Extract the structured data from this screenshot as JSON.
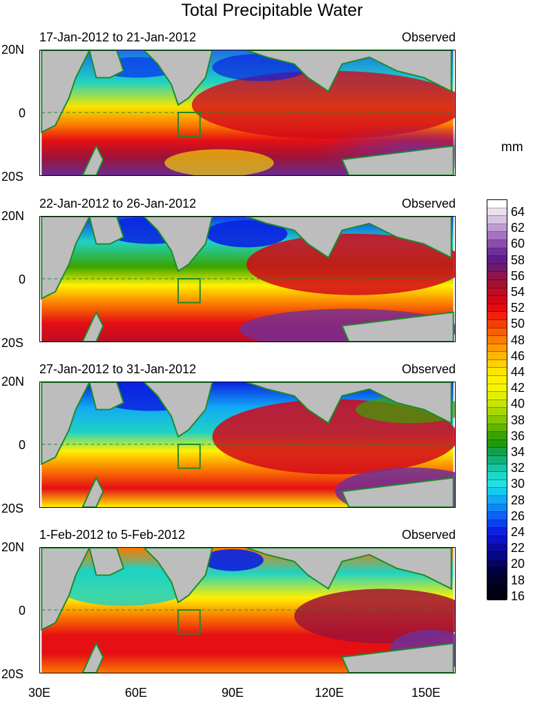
{
  "title": "Total Precipitable Water",
  "units": "mm",
  "panels": [
    {
      "date_range": "17-Jan-2012 to 21-Jan-2012",
      "tag": "Observed"
    },
    {
      "date_range": "22-Jan-2012 to 26-Jan-2012",
      "tag": "Observed"
    },
    {
      "date_range": "27-Jan-2012 to 31-Jan-2012",
      "tag": "Observed"
    },
    {
      "date_range": "1-Feb-2012 to 5-Feb-2012",
      "tag": "Observed"
    }
  ],
  "lat_labels": [
    "20N",
    "0",
    "20S"
  ],
  "lon_labels": [
    "30E",
    "60E",
    "90E",
    "120E",
    "150E"
  ],
  "colorbar": {
    "labels": [
      "64",
      "62",
      "60",
      "58",
      "56",
      "54",
      "52",
      "50",
      "48",
      "46",
      "44",
      "42",
      "40",
      "38",
      "36",
      "34",
      "32",
      "30",
      "28",
      "26",
      "24",
      "22",
      "20",
      "18",
      "16"
    ],
    "colors_top_to_bottom": [
      "#ffffff",
      "#ece0ef",
      "#d9c3e3",
      "#c09bd2",
      "#a673c0",
      "#8c4cab",
      "#702f98",
      "#5f1b8c",
      "#721a6a",
      "#8c1550",
      "#a31133",
      "#bd0c24",
      "#d3071a",
      "#e60a10",
      "#f2220a",
      "#f53f05",
      "#f95e00",
      "#fc7c00",
      "#fe9a00",
      "#ffb600",
      "#ffcf00",
      "#ffe400",
      "#fff000",
      "#f5f500",
      "#e1ef00",
      "#c8e500",
      "#a6d800",
      "#85c800",
      "#5fb500",
      "#3aa300",
      "#1f9a10",
      "#13a04a",
      "#11b07a",
      "#15c6a6",
      "#1bd8cb",
      "#1ee3e3",
      "#18c9ef",
      "#12a9f5",
      "#0d86f8",
      "#0b62f5",
      "#0a40ee",
      "#0a22e0",
      "#0b12c7",
      "#0a0aa6",
      "#070784",
      "#040460",
      "#01013c",
      "#00002a",
      "#000018",
      "#000010"
    ]
  }
}
